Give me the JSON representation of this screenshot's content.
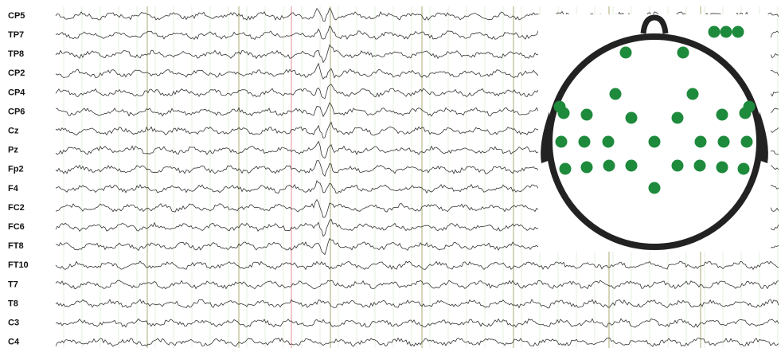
{
  "channels": [
    "CP5",
    "TP7",
    "TP8",
    "CP2",
    "CP4",
    "CP6",
    "Cz",
    "Pz",
    "Fp2",
    "F4",
    "FC2",
    "FC6",
    "FT8",
    "FT10",
    "T7",
    "T8",
    "C3",
    "C4"
  ]
}
